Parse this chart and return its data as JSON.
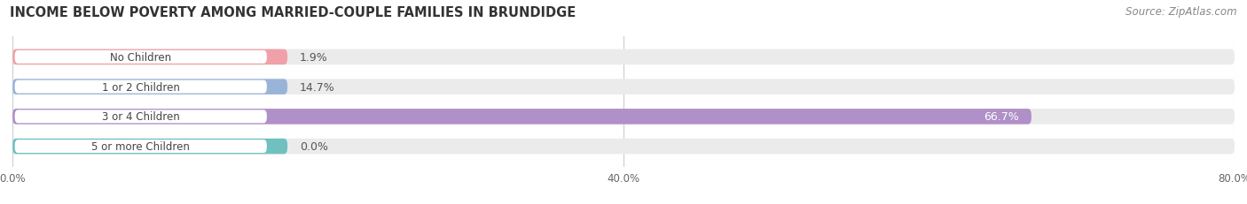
{
  "title": "INCOME BELOW POVERTY AMONG MARRIED-COUPLE FAMILIES IN BRUNDIDGE",
  "source": "Source: ZipAtlas.com",
  "categories": [
    "No Children",
    "1 or 2 Children",
    "3 or 4 Children",
    "5 or more Children"
  ],
  "values": [
    1.9,
    14.7,
    66.7,
    0.0
  ],
  "bar_colors": [
    "#f0a0a8",
    "#9ab4d8",
    "#b090c8",
    "#70c0c0"
  ],
  "bar_bg_color": "#ebebeb",
  "label_bg_color": "#ffffff",
  "xlim_data": [
    0,
    80.0
  ],
  "xticks": [
    0.0,
    40.0,
    80.0
  ],
  "xtick_labels": [
    "0.0%",
    "40.0%",
    "80.0%"
  ],
  "value_labels": [
    "1.9%",
    "14.7%",
    "66.7%",
    "0.0%"
  ],
  "bar_height": 0.52,
  "figsize": [
    14.06,
    2.32
  ],
  "dpi": 100,
  "title_fontsize": 10.5,
  "label_fontsize": 8.5,
  "value_fontsize": 9,
  "source_fontsize": 8.5
}
